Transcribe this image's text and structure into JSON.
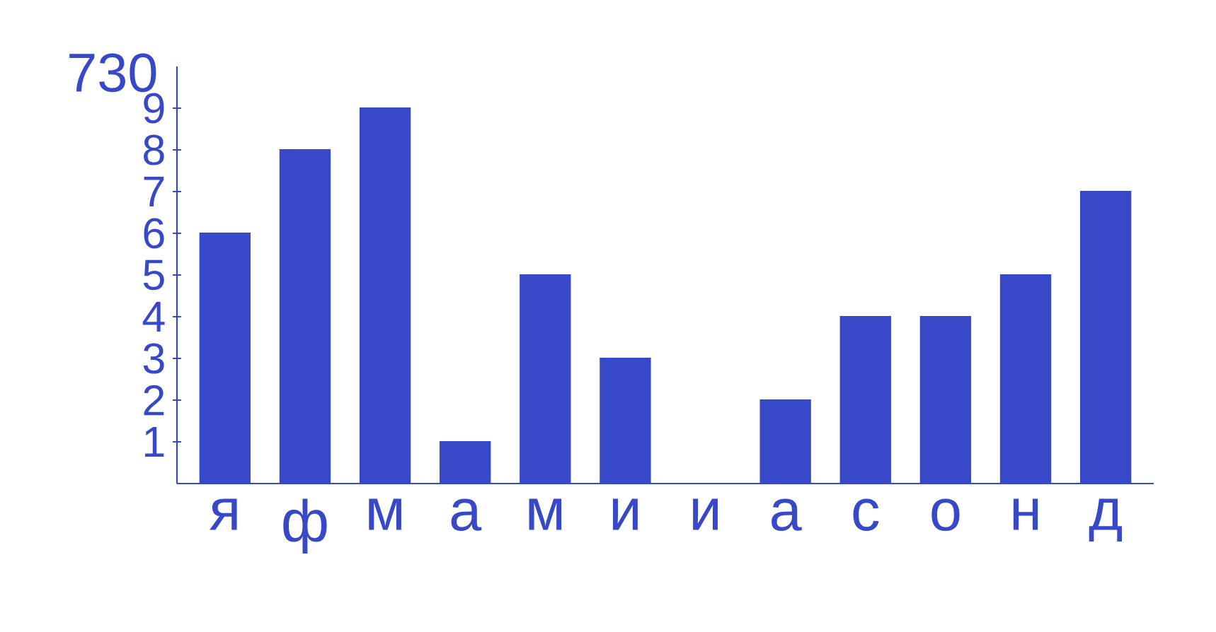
{
  "chart_data": {
    "type": "bar",
    "title": "730",
    "categories": [
      "я",
      "ф",
      "м",
      "а",
      "м",
      "и",
      "и",
      "а",
      "с",
      "о",
      "н",
      "д"
    ],
    "values": [
      6,
      8,
      9,
      1,
      5,
      3,
      0,
      2,
      4,
      4,
      5,
      7
    ],
    "color": "#3748c8",
    "ylim": [
      0,
      10
    ],
    "yticks": [
      1,
      2,
      3,
      4,
      5,
      6,
      7,
      8,
      9
    ],
    "grid": false
  }
}
